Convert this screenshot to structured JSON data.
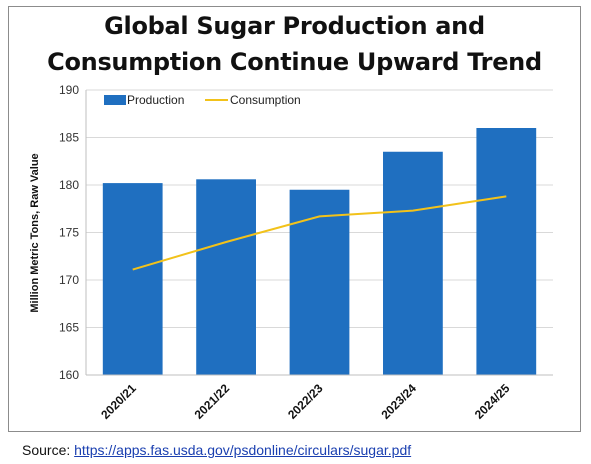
{
  "chart_data": {
    "type": "bar",
    "title_lines": [
      "Global Sugar Production and",
      "Consumption Continue Upward Trend"
    ],
    "ylabel": "Million Metric Tons, Raw Value",
    "xlabel": "",
    "categories": [
      "2020/21",
      "2021/22",
      "2022/23",
      "2023/24",
      "2024/25"
    ],
    "series": [
      {
        "name": "Production",
        "kind": "bar",
        "color": "#1f6fc0",
        "values": [
          180.2,
          180.6,
          179.5,
          183.5,
          186.0
        ]
      },
      {
        "name": "Consumption",
        "kind": "line",
        "color": "#f2c21a",
        "values": [
          171.1,
          174.0,
          176.7,
          177.3,
          178.8
        ]
      }
    ],
    "ylim": [
      160,
      190
    ],
    "yticks": [
      160,
      165,
      170,
      175,
      180,
      185,
      190
    ],
    "grid": true,
    "legend": "top-left"
  },
  "source": {
    "label": "Source: ",
    "link_text": "https://apps.fas.usda.gov/psdonline/circulars/sugar.pdf"
  }
}
